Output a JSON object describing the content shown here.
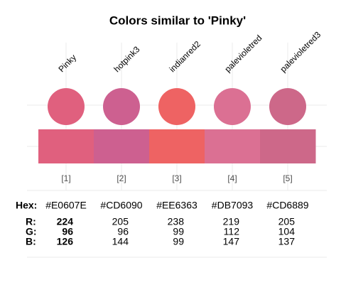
{
  "title": "Colors similar to 'Pinky'",
  "row_labels": {
    "hex": "Hex:",
    "r": "R:",
    "g": "G:",
    "b": "B:"
  },
  "colors": [
    {
      "name": "Pinky",
      "index": "[1]",
      "hex": "#E0607E",
      "r": 224,
      "g": 96,
      "b": 126
    },
    {
      "name": "hotpink3",
      "index": "[2]",
      "hex": "#CD6090",
      "r": 205,
      "g": 96,
      "b": 144
    },
    {
      "name": "indianred2",
      "index": "[3]",
      "hex": "#EE6363",
      "r": 238,
      "g": 99,
      "b": 99
    },
    {
      "name": "palevioletred",
      "index": "[4]",
      "hex": "#DB7093",
      "r": 219,
      "g": 112,
      "b": 147
    },
    {
      "name": "palevioletred3",
      "index": "[5]",
      "hex": "#CD6889",
      "r": 205,
      "g": 104,
      "b": 137
    }
  ]
}
